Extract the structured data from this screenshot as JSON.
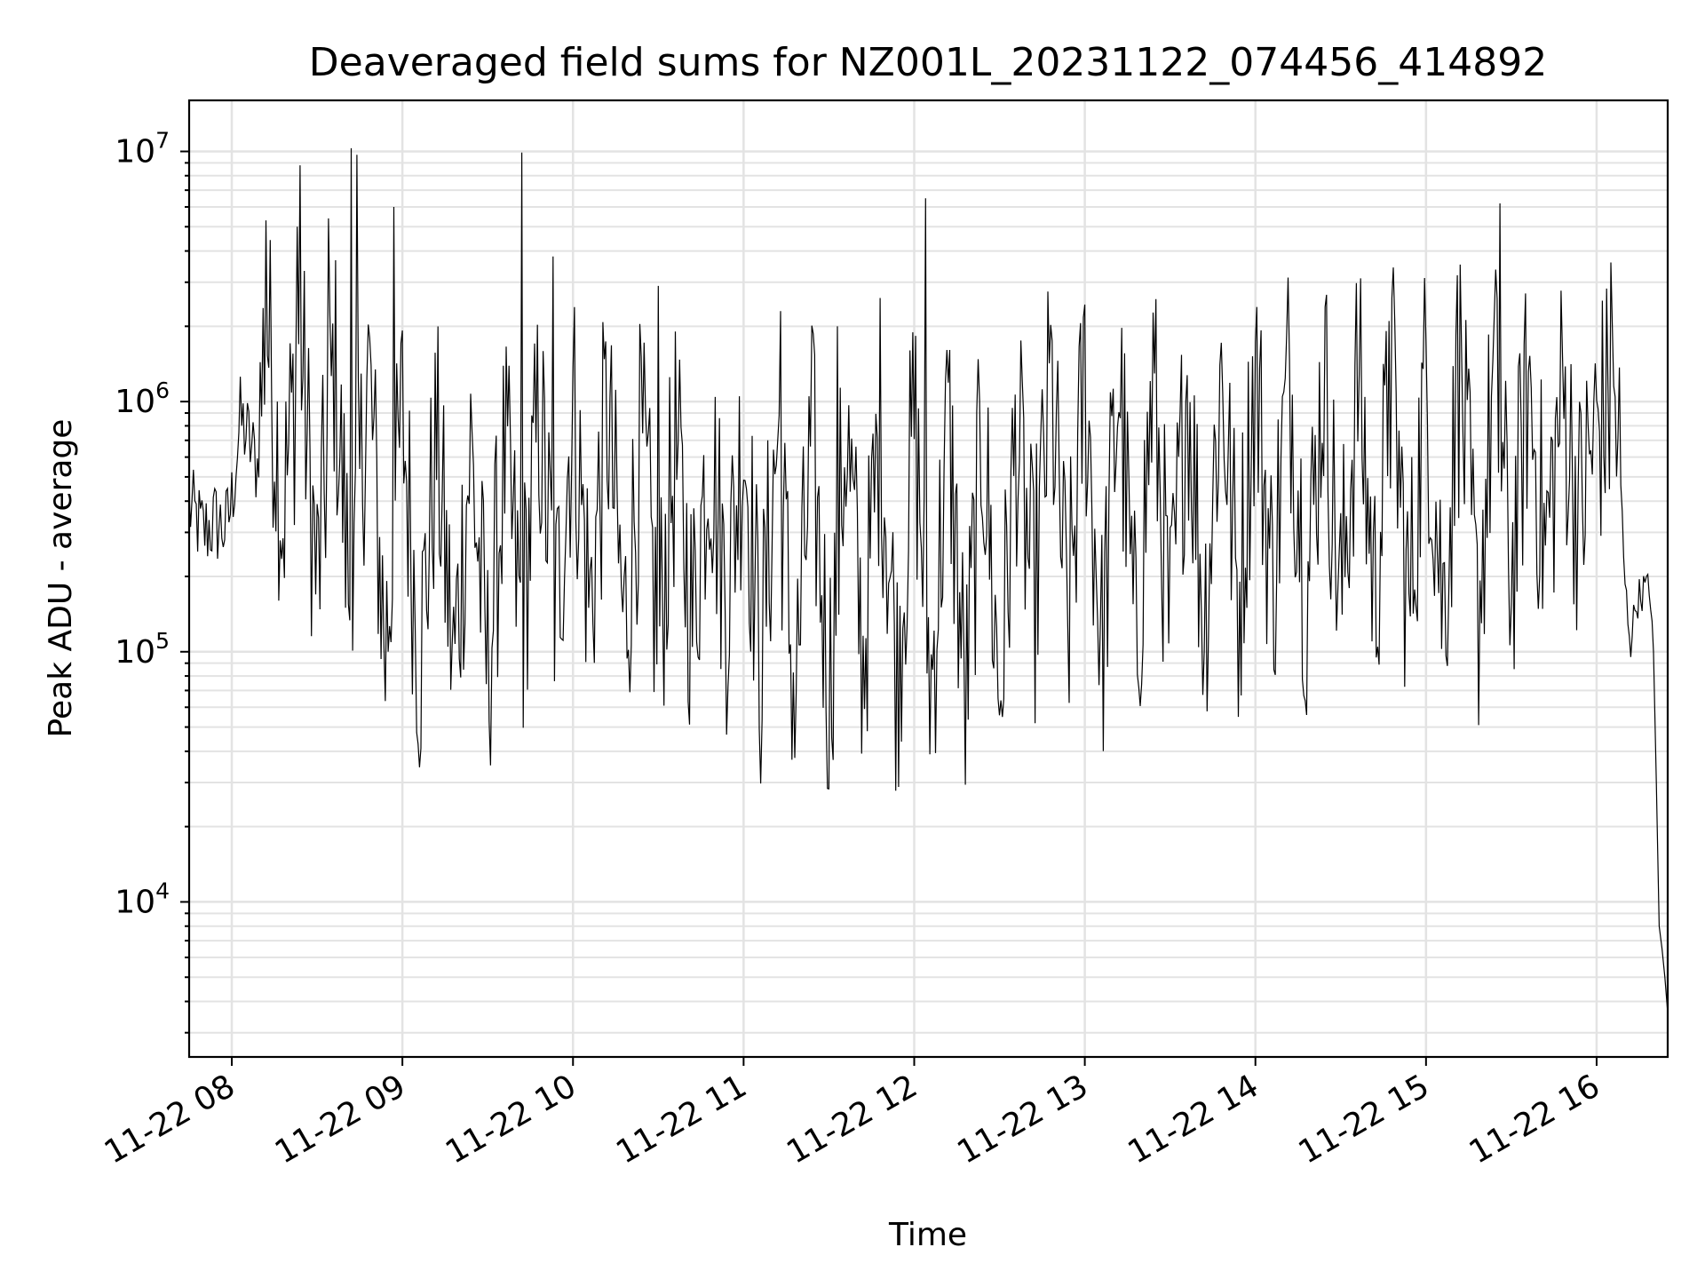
{
  "chart_data": {
    "type": "line",
    "title": "Deaveraged field sums for NZ001L_20231122_074456_414892",
    "xlabel": "Time",
    "ylabel": "Peak ADU - average",
    "yscale": "log",
    "ylim": [
      2400,
      16000000
    ],
    "xlim": [
      "2023-11-22 07:45",
      "2023-11-22 16:25"
    ],
    "x_ticks": [
      "11-22 08",
      "11-22 09",
      "11-22 10",
      "11-22 11",
      "11-22 12",
      "11-22 13",
      "11-22 14",
      "11-22 15",
      "11-22 16"
    ],
    "x_tick_rotation": 30,
    "y_ticks": [
      {
        "base": "10",
        "exp": "4",
        "value": 10000
      },
      {
        "base": "10",
        "exp": "5",
        "value": 100000
      },
      {
        "base": "10",
        "exp": "6",
        "value": 1000000
      },
      {
        "base": "10",
        "exp": "7",
        "value": 10000000
      }
    ],
    "grid": true,
    "legend": "none",
    "series": [
      {
        "color": "#000000",
        "points": [
          [
            "2023-11-22 07:45",
            380000
          ],
          [
            "2023-11-22 07:50",
            300000
          ],
          [
            "2023-11-22 07:54",
            330000
          ],
          [
            "2023-11-22 07:58",
            310000
          ],
          [
            "2023-11-22 08:00",
            400000
          ],
          [
            "2023-11-22 08:03",
            850000
          ],
          [
            "2023-11-22 08:06",
            700000
          ],
          [
            "2023-11-22 08:09",
            550000
          ],
          [
            "2023-11-22 08:12",
            2300000
          ],
          [
            "2023-11-22 08:18",
            350000
          ],
          [
            "2023-11-22 08:24",
            1900000
          ],
          [
            "2023-11-22 08:30",
            180000
          ],
          [
            "2023-11-22 08:36",
            1500000
          ],
          [
            "2023-11-22 08:42",
            130000
          ],
          [
            "2023-11-22 08:48",
            1400000
          ],
          [
            "2023-11-22 08:54",
            100000
          ],
          [
            "2023-11-22 09:00",
            900000
          ],
          [
            "2023-11-22 09:06",
            90000
          ],
          [
            "2023-11-22 09:12",
            700000
          ],
          [
            "2023-11-22 09:18",
            85000
          ],
          [
            "2023-11-22 09:24",
            650000
          ],
          [
            "2023-11-22 09:30",
            80000
          ],
          [
            "2023-11-22 09:36",
            600000
          ],
          [
            "2023-11-22 09:42",
            120000
          ],
          [
            "2023-11-22 09:48",
            900000
          ],
          [
            "2023-11-22 09:54",
            140000
          ],
          [
            "2023-11-22 10:00",
            1000000
          ],
          [
            "2023-11-22 10:06",
            150000
          ],
          [
            "2023-11-22 10:12",
            950000
          ],
          [
            "2023-11-22 10:18",
            120000
          ],
          [
            "2023-11-22 10:24",
            700000
          ],
          [
            "2023-11-22 10:30",
            110000
          ],
          [
            "2023-11-22 10:36",
            650000
          ],
          [
            "2023-11-22 10:42",
            130000
          ],
          [
            "2023-11-22 10:48",
            720000
          ],
          [
            "2023-11-22 10:54",
            160000
          ],
          [
            "2023-11-22 11:00",
            780000
          ],
          [
            "2023-11-22 11:06",
            90000
          ],
          [
            "2023-11-22 11:12",
            750000
          ],
          [
            "2023-11-22 11:18",
            60000
          ],
          [
            "2023-11-22 11:24",
            700000
          ],
          [
            "2023-11-22 11:30",
            70000
          ],
          [
            "2023-11-22 11:36",
            800000
          ],
          [
            "2023-11-22 11:42",
            90000
          ],
          [
            "2023-11-22 11:48",
            850000
          ],
          [
            "2023-11-22 11:54",
            80000
          ],
          [
            "2023-11-22 12:00",
            870000
          ],
          [
            "2023-11-22 12:06",
            70000
          ],
          [
            "2023-11-22 12:12",
            850000
          ],
          [
            "2023-11-22 12:18",
            60000
          ],
          [
            "2023-11-22 12:24",
            800000
          ],
          [
            "2023-11-22 12:30",
            65000
          ],
          [
            "2023-11-22 12:36",
            760000
          ],
          [
            "2023-11-22 12:42",
            150000
          ],
          [
            "2023-11-22 12:48",
            1200000
          ],
          [
            "2023-11-22 12:54",
            120000
          ],
          [
            "2023-11-22 13:00",
            1300000
          ],
          [
            "2023-11-22 13:06",
            100000
          ],
          [
            "2023-11-22 13:12",
            1300000
          ],
          [
            "2023-11-22 13:18",
            90000
          ],
          [
            "2023-11-22 13:24",
            1250000
          ],
          [
            "2023-11-22 13:30",
            110000
          ],
          [
            "2023-11-22 13:36",
            1300000
          ],
          [
            "2023-11-22 13:42",
            130000
          ],
          [
            "2023-11-22 13:48",
            1350000
          ],
          [
            "2023-11-22 13:54",
            150000
          ],
          [
            "2023-11-22 14:00",
            1400000
          ],
          [
            "2023-11-22 14:06",
            180000
          ],
          [
            "2023-11-22 14:12",
            1400000
          ],
          [
            "2023-11-22 14:18",
            160000
          ],
          [
            "2023-11-22 14:24",
            1350000
          ],
          [
            "2023-11-22 14:30",
            150000
          ],
          [
            "2023-11-22 14:36",
            1300000
          ],
          [
            "2023-11-22 14:42",
            170000
          ],
          [
            "2023-11-22 14:48",
            1300000
          ],
          [
            "2023-11-22 14:54",
            140000
          ],
          [
            "2023-11-22 15:00",
            1300000
          ],
          [
            "2023-11-22 15:06",
            150000
          ],
          [
            "2023-11-22 15:12",
            1300000
          ],
          [
            "2023-11-22 15:18",
            130000
          ],
          [
            "2023-11-22 15:24",
            1300000
          ],
          [
            "2023-11-22 15:30",
            200000
          ],
          [
            "2023-11-22 15:36",
            1200000
          ],
          [
            "2023-11-22 15:42",
            250000
          ],
          [
            "2023-11-22 15:48",
            1100000
          ],
          [
            "2023-11-22 15:54",
            350000
          ],
          [
            "2023-11-22 16:00",
            800000
          ],
          [
            "2023-11-22 16:03",
            900000
          ],
          [
            "2023-11-22 16:06",
            1000000
          ],
          [
            "2023-11-22 16:08",
            600000
          ],
          [
            "2023-11-22 16:10",
            180000
          ],
          [
            "2023-11-22 16:12",
            110000
          ],
          [
            "2023-11-22 16:14",
            160000
          ],
          [
            "2023-11-22 16:17",
            180000
          ],
          [
            "2023-11-22 16:19",
            170000
          ],
          [
            "2023-11-22 16:20",
            100000
          ],
          [
            "2023-11-22 16:21",
            30000
          ],
          [
            "2023-11-22 16:22",
            8000
          ],
          [
            "2023-11-22 16:23",
            6500
          ],
          [
            "2023-11-22 16:24",
            5000
          ],
          [
            "2023-11-22 16:25",
            3600
          ]
        ],
        "spikes": [
          [
            "2023-11-22 08:12",
            5300000
          ],
          [
            "2023-11-22 08:23",
            5000000
          ],
          [
            "2023-11-22 08:24",
            8800000
          ],
          [
            "2023-11-22 08:34",
            5400000
          ],
          [
            "2023-11-22 08:42",
            10300000
          ],
          [
            "2023-11-22 08:44",
            9700000
          ],
          [
            "2023-11-22 08:57",
            6000000
          ],
          [
            "2023-11-22 09:42",
            9900000
          ],
          [
            "2023-11-22 09:53",
            3800000
          ],
          [
            "2023-11-22 10:30",
            2900000
          ],
          [
            "2023-11-22 11:13",
            2300000
          ],
          [
            "2023-11-22 11:33",
            2000000
          ],
          [
            "2023-11-22 12:04",
            6500000
          ],
          [
            "2023-11-22 14:47",
            2100000
          ],
          [
            "2023-11-22 15:11",
            3200000
          ],
          [
            "2023-11-22 15:26",
            6200000
          ],
          [
            "2023-11-22 16:05",
            3600000
          ]
        ]
      }
    ]
  }
}
